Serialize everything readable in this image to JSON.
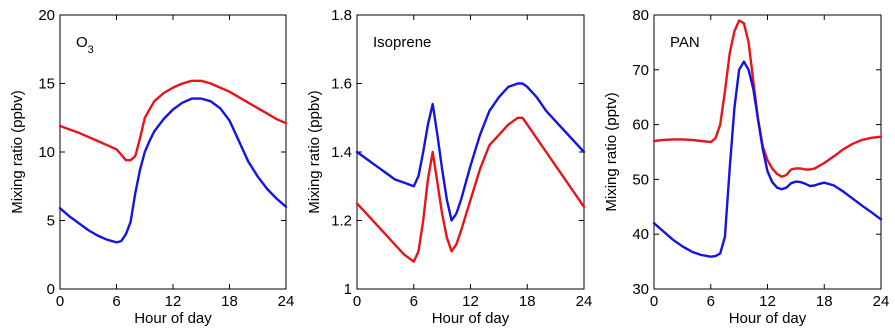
{
  "chart_data": [
    {
      "type": "line",
      "title": "O3",
      "title_main": "O",
      "title_sub": "3",
      "xlabel": "Hour of day",
      "ylabel": "Mixing ratio (ppbv)",
      "xlim": [
        0,
        24
      ],
      "ylim": [
        0,
        20
      ],
      "xticks": [
        "0",
        "6",
        "12",
        "18",
        "24"
      ],
      "yticks": [
        "0",
        "5",
        "10",
        "15",
        "20"
      ],
      "grid": false,
      "series": [
        {
          "color": "#e8141a",
          "x": [
            0,
            2,
            4,
            6,
            6.5,
            7,
            7.5,
            8,
            8.5,
            9,
            10,
            11,
            12,
            13,
            14,
            15,
            16,
            17,
            18,
            19,
            20,
            21,
            22,
            23,
            24
          ],
          "y": [
            11.9,
            11.4,
            10.8,
            10.2,
            9.8,
            9.4,
            9.4,
            9.7,
            11.0,
            12.5,
            13.7,
            14.3,
            14.7,
            15.0,
            15.2,
            15.2,
            15.0,
            14.7,
            14.4,
            14.0,
            13.6,
            13.2,
            12.8,
            12.4,
            12.1
          ]
        },
        {
          "color": "#1414e0",
          "x": [
            0,
            1,
            2,
            3,
            4,
            5,
            6,
            6.5,
            7,
            7.5,
            8,
            8.5,
            9,
            9.5,
            10,
            11,
            12,
            13,
            14,
            15,
            16,
            17,
            18,
            19,
            20,
            21,
            22,
            23,
            24
          ],
          "y": [
            5.9,
            5.3,
            4.8,
            4.3,
            3.9,
            3.6,
            3.4,
            3.5,
            4.0,
            4.9,
            7.0,
            8.7,
            10.0,
            10.8,
            11.5,
            12.4,
            13.1,
            13.6,
            13.9,
            13.9,
            13.7,
            13.2,
            12.3,
            10.8,
            9.3,
            8.2,
            7.3,
            6.6,
            6.0
          ]
        }
      ]
    },
    {
      "type": "line",
      "title": "Isoprene",
      "xlabel": "Hour of day",
      "ylabel": "Mixing ratio (ppbv)",
      "xlim": [
        0,
        24
      ],
      "ylim": [
        1,
        1.8
      ],
      "xticks": [
        "0",
        "6",
        "12",
        "18",
        "24"
      ],
      "yticks": [
        "1",
        "1.2",
        "1.4",
        "1.6",
        "1.8"
      ],
      "grid": false,
      "series": [
        {
          "color": "#1414e0",
          "x": [
            0,
            1,
            2,
            3,
            4,
            5,
            6,
            6.5,
            7,
            7.5,
            8,
            8.5,
            9,
            9.5,
            10,
            10.5,
            11,
            12,
            13,
            14,
            15,
            16,
            17,
            17.5,
            18,
            19,
            20,
            21,
            22,
            23,
            24
          ],
          "y": [
            1.4,
            1.38,
            1.36,
            1.34,
            1.32,
            1.31,
            1.3,
            1.33,
            1.4,
            1.48,
            1.54,
            1.45,
            1.35,
            1.26,
            1.2,
            1.22,
            1.26,
            1.36,
            1.45,
            1.52,
            1.56,
            1.59,
            1.6,
            1.6,
            1.59,
            1.56,
            1.52,
            1.49,
            1.46,
            1.43,
            1.4
          ]
        },
        {
          "color": "#e8141a",
          "x": [
            0,
            1,
            2,
            3,
            4,
            5,
            6,
            6.5,
            7,
            7.5,
            8,
            8.5,
            9,
            9.5,
            10,
            10.5,
            11,
            12,
            13,
            14,
            15,
            16,
            17,
            17.5,
            18,
            19,
            20,
            21,
            22,
            23,
            24
          ],
          "y": [
            1.25,
            1.22,
            1.19,
            1.16,
            1.13,
            1.1,
            1.08,
            1.11,
            1.2,
            1.32,
            1.4,
            1.31,
            1.22,
            1.15,
            1.11,
            1.13,
            1.17,
            1.26,
            1.35,
            1.42,
            1.45,
            1.48,
            1.5,
            1.5,
            1.48,
            1.44,
            1.4,
            1.36,
            1.32,
            1.28,
            1.24
          ]
        }
      ]
    },
    {
      "type": "line",
      "title": "PAN",
      "xlabel": "Hour of day",
      "ylabel": "Mixing ratio (pptv)",
      "xlim": [
        0,
        24
      ],
      "ylim": [
        30,
        80
      ],
      "xticks": [
        "0",
        "6",
        "12",
        "18",
        "24"
      ],
      "yticks": [
        "30",
        "40",
        "50",
        "60",
        "70",
        "80"
      ],
      "grid": false,
      "series": [
        {
          "color": "#e8141a",
          "x": [
            0,
            1,
            2,
            3,
            4,
            5,
            6,
            6.5,
            7,
            7.5,
            8,
            8.5,
            9,
            9.5,
            10,
            10.5,
            11,
            11.5,
            12,
            12.5,
            13,
            13.5,
            14,
            14.5,
            15,
            15.5,
            16,
            16.5,
            17,
            17.5,
            18,
            19,
            20,
            21,
            22,
            23,
            24
          ],
          "y": [
            57.0,
            57.2,
            57.3,
            57.3,
            57.2,
            57.0,
            56.8,
            57.5,
            60.0,
            66.0,
            73.0,
            77.0,
            79.0,
            78.5,
            75.0,
            68.0,
            61.0,
            56.0,
            53.5,
            52.0,
            51.0,
            50.5,
            50.8,
            51.8,
            52.0,
            52.0,
            51.8,
            51.8,
            52.0,
            52.5,
            53.0,
            54.2,
            55.5,
            56.5,
            57.2,
            57.6,
            57.8
          ]
        },
        {
          "color": "#1414e0",
          "x": [
            0,
            1,
            2,
            3,
            4,
            5,
            6,
            6.5,
            7,
            7.5,
            8,
            8.5,
            9,
            9.5,
            10,
            10.5,
            11,
            11.5,
            12,
            12.5,
            13,
            13.5,
            14,
            14.5,
            15,
            15.5,
            16,
            16.5,
            17,
            17.5,
            18,
            19,
            20,
            21,
            22,
            23,
            24
          ],
          "y": [
            42.0,
            40.5,
            39.0,
            37.8,
            36.8,
            36.2,
            35.9,
            36.0,
            36.5,
            39.5,
            52.0,
            63.0,
            70.0,
            71.5,
            70.0,
            66.5,
            61.0,
            55.5,
            51.5,
            49.5,
            48.5,
            48.2,
            48.5,
            49.3,
            49.6,
            49.5,
            49.2,
            48.8,
            48.9,
            49.2,
            49.4,
            48.9,
            47.8,
            46.5,
            45.2,
            44.0,
            42.7
          ]
        }
      ]
    }
  ]
}
